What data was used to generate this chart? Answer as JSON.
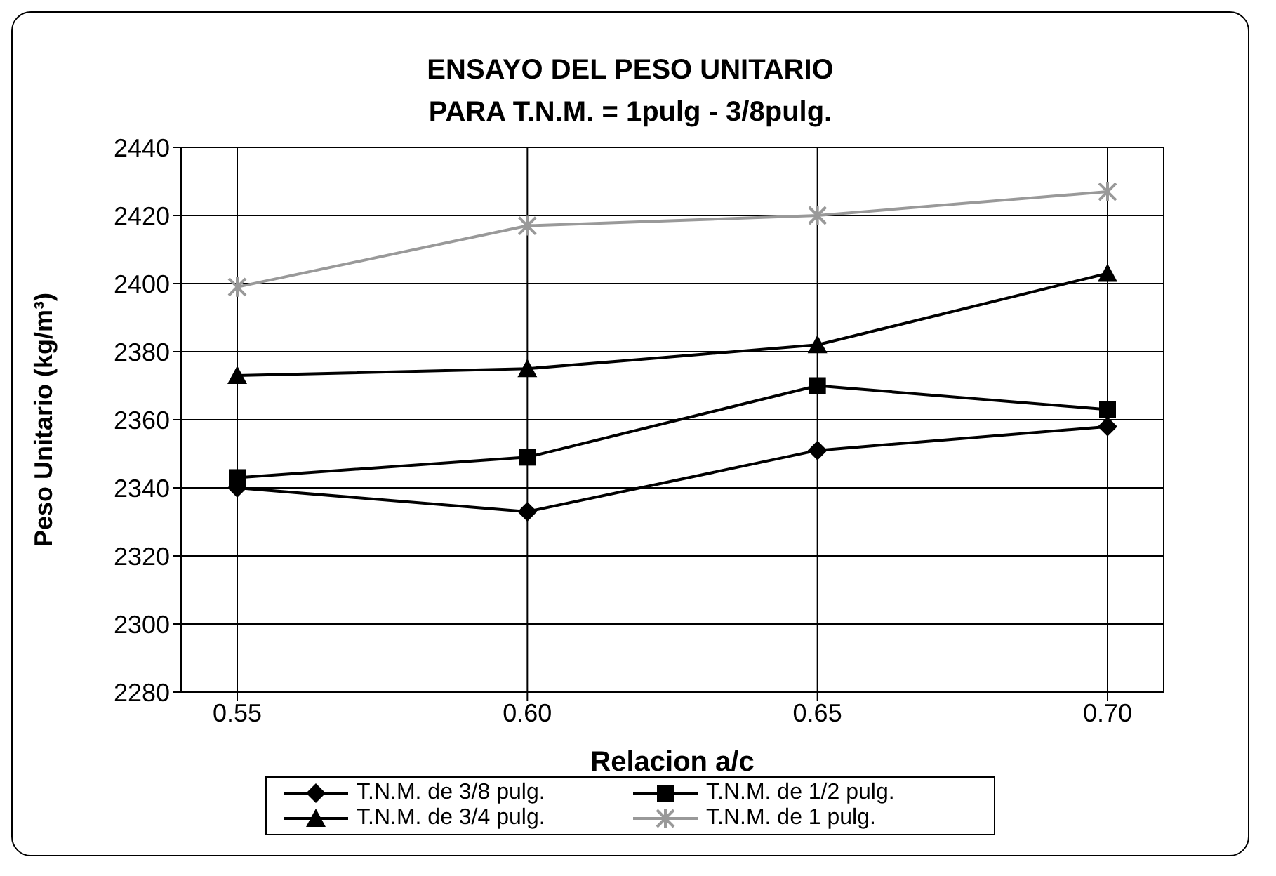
{
  "chart_data": {
    "type": "line",
    "title": "ENSAYO DEL PESO UNITARIO\nPARA T.N.M. = 1pulg - 3/8pulg.",
    "xlabel": "Relacion a/c",
    "ylabel": "Peso Unitario (kg/m³)",
    "categories": [
      "0.55",
      "0.60",
      "0.65",
      "0.70"
    ],
    "series": [
      {
        "name": "T.N.M. de 3/8 pulg.",
        "color": "#000000",
        "marker": "diamond",
        "values": [
          2340,
          2333,
          2351,
          2358
        ]
      },
      {
        "name": "T.N.M. de 1/2 pulg.",
        "color": "#000000",
        "marker": "square",
        "values": [
          2343,
          2349,
          2370,
          2363
        ]
      },
      {
        "name": "T.N.M. de 3/4 pulg.",
        "color": "#000000",
        "marker": "triangle",
        "values": [
          2373,
          2375,
          2382,
          2403
        ]
      },
      {
        "name": "T.N.M. de 1 pulg.",
        "color": "#999999",
        "marker": "cross",
        "values": [
          2399,
          2417,
          2420,
          2427
        ]
      }
    ],
    "ylim": [
      2280,
      2440
    ],
    "yticks": [
      2280,
      2300,
      2320,
      2340,
      2360,
      2380,
      2400,
      2420,
      2440
    ],
    "grid": true,
    "legend": "bottom"
  }
}
